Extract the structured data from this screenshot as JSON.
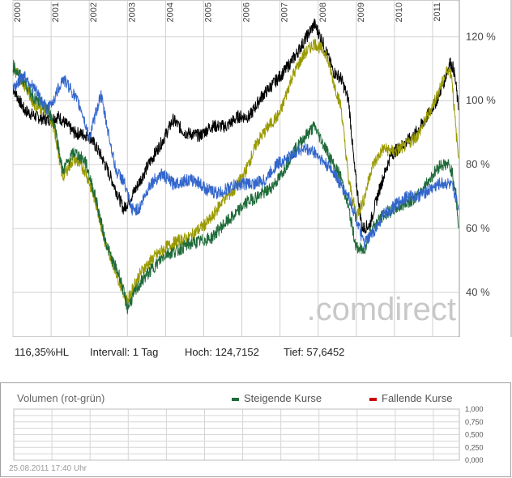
{
  "chart_data": {
    "type": "line",
    "x_labels": [
      "2000",
      "2001",
      "2002",
      "2003",
      "2004",
      "2005",
      "2006",
      "2007",
      "2008",
      "2009",
      "2010",
      "2011"
    ],
    "y_ticks": [
      "120 %",
      "100 %",
      "80 %",
      "60 %",
      "40 %"
    ],
    "y_tick_values": [
      120,
      100,
      80,
      60,
      40
    ],
    "ylim": [
      26,
      131
    ],
    "xlim": [
      2000.0,
      2011.7
    ],
    "grid": true,
    "watermark": ".comdirect",
    "series": [
      {
        "color": "#000000",
        "x": [
          2000.0,
          2000.3,
          2000.6,
          2000.9,
          2001.2,
          2001.6,
          2002.0,
          2002.3,
          2002.6,
          2002.9,
          2003.2,
          2003.6,
          2003.9,
          2004.2,
          2004.5,
          2004.9,
          2005.2,
          2005.6,
          2005.9,
          2006.2,
          2006.5,
          2006.8,
          2007.1,
          2007.4,
          2007.6,
          2007.75,
          2007.9,
          2008.1,
          2008.4,
          2008.6,
          2008.8,
          2008.95,
          2009.15,
          2009.35,
          2009.6,
          2009.9,
          2010.2,
          2010.5,
          2010.8,
          2011.1,
          2011.3,
          2011.45,
          2011.55,
          2011.62,
          2011.68
        ],
        "values": [
          104,
          97,
          95,
          94,
          95,
          90,
          89,
          83,
          75,
          66,
          72,
          81,
          87,
          94,
          90,
          89,
          92,
          92,
          95,
          95,
          101,
          105,
          109,
          114,
          118,
          121,
          124,
          119,
          109,
          107,
          100,
          79,
          60,
          61,
          72,
          83,
          86,
          89,
          94,
          100,
          106,
          112,
          110,
          104,
          97
        ]
      },
      {
        "color": "#9a9a00",
        "x": [
          2000.0,
          2000.3,
          2000.6,
          2000.9,
          2001.1,
          2001.3,
          2001.6,
          2001.9,
          2002.2,
          2002.4,
          2002.6,
          2002.8,
          2003.0,
          2003.2,
          2003.4,
          2003.7,
          2004.0,
          2004.3,
          2004.6,
          2004.9,
          2005.2,
          2005.5,
          2005.8,
          2006.1,
          2006.4,
          2006.7,
          2007.0,
          2007.3,
          2007.6,
          2007.9,
          2008.2,
          2008.4,
          2008.6,
          2008.8,
          2009.0,
          2009.2,
          2009.4,
          2009.7,
          2010.0,
          2010.3,
          2010.6,
          2010.9,
          2011.2,
          2011.4,
          2011.5,
          2011.6,
          2011.68
        ],
        "values": [
          110,
          105,
          98,
          97,
          90,
          76,
          82,
          78,
          67,
          56,
          50,
          43,
          37,
          43,
          47,
          51,
          54,
          56,
          57,
          60,
          63,
          69,
          72,
          78,
          87,
          92,
          96,
          107,
          114,
          118,
          115,
          106,
          98,
          75,
          64,
          69,
          79,
          85,
          84,
          86,
          89,
          96,
          104,
          110,
          108,
          92,
          82
        ]
      },
      {
        "color": "#1f6b3a",
        "x": [
          2000.0,
          2000.3,
          2000.6,
          2000.9,
          2001.1,
          2001.3,
          2001.6,
          2001.9,
          2002.2,
          2002.4,
          2002.6,
          2002.8,
          2003.0,
          2003.2,
          2003.4,
          2003.7,
          2004.0,
          2004.3,
          2004.6,
          2004.9,
          2005.2,
          2005.5,
          2005.8,
          2006.1,
          2006.4,
          2006.7,
          2007.0,
          2007.3,
          2007.6,
          2007.9,
          2008.2,
          2008.4,
          2008.6,
          2008.8,
          2009.0,
          2009.2,
          2009.4,
          2009.7,
          2010.0,
          2010.3,
          2010.6,
          2010.9,
          2011.2,
          2011.4,
          2011.5,
          2011.6,
          2011.68
        ],
        "values": [
          111,
          106,
          100,
          98,
          92,
          78,
          84,
          81,
          68,
          57,
          50,
          45,
          35,
          40,
          44,
          48,
          52,
          53,
          55,
          56,
          57,
          61,
          64,
          68,
          70,
          72,
          76,
          83,
          88,
          92,
          85,
          80,
          76,
          66,
          54,
          53,
          60,
          64,
          66,
          68,
          70,
          75,
          80,
          80,
          78,
          72,
          60
        ]
      },
      {
        "color": "#3366cc",
        "x": [
          2000.0,
          2000.3,
          2000.6,
          2000.9,
          2001.1,
          2001.3,
          2001.5,
          2001.8,
          2002.0,
          2002.3,
          2002.5,
          2002.7,
          2002.9,
          2003.1,
          2003.3,
          2003.6,
          2003.9,
          2004.2,
          2004.5,
          2004.8,
          2005.1,
          2005.4,
          2005.7,
          2006.0,
          2006.3,
          2006.6,
          2006.9,
          2007.2,
          2007.4,
          2007.6,
          2007.9,
          2008.2,
          2008.4,
          2008.6,
          2008.8,
          2009.0,
          2009.2,
          2009.4,
          2009.7,
          2010.0,
          2010.3,
          2010.6,
          2010.9,
          2011.2,
          2011.4,
          2011.5,
          2011.6,
          2011.68
        ],
        "values": [
          104,
          108,
          103,
          97,
          101,
          107,
          104,
          97,
          88,
          102,
          90,
          78,
          75,
          66,
          66,
          74,
          77,
          74,
          75,
          75,
          72,
          71,
          73,
          74,
          74,
          75,
          80,
          82,
          84,
          85,
          84,
          80,
          78,
          73,
          70,
          63,
          55,
          58,
          64,
          67,
          70,
          70,
          72,
          74,
          74,
          73,
          70,
          66
        ]
      }
    ]
  },
  "stats": {
    "value": "116,35%HL",
    "interval": "Intervall: 1 Tag",
    "high": "Hoch: 124,7152",
    "low": "Tief: 57,6452"
  },
  "volume": {
    "title": "Volumen (rot-grün)",
    "legend_rising": "Steigende Kurse",
    "legend_falling": "Fallende Kurse",
    "rising_color": "#1f6b3a",
    "falling_color": "#cc0000",
    "y_ticks": [
      "1,000",
      "0,750",
      "0,500",
      "0,250",
      "0,000"
    ]
  },
  "timestamp": "25.08.2011 17:40 Uhr"
}
